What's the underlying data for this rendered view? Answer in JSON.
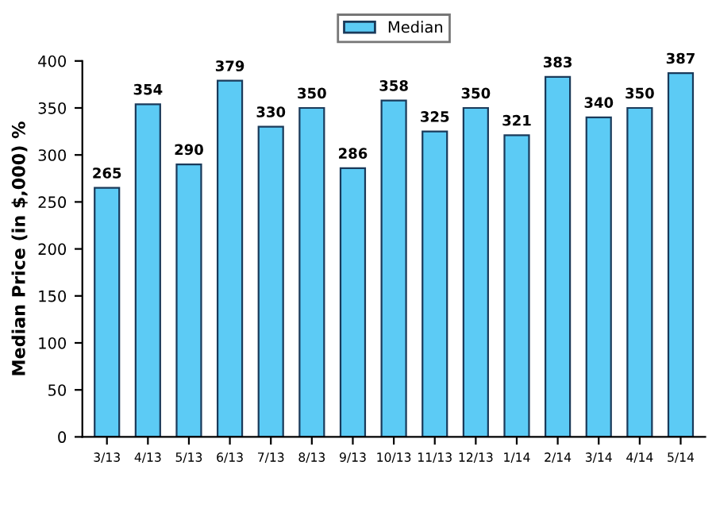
{
  "chart_data": {
    "type": "bar",
    "ylabel": "Median Price (in $,000) %",
    "categories": [
      "3/13",
      "4/13",
      "5/13",
      "6/13",
      "7/13",
      "8/13",
      "9/13",
      "10/13",
      "11/13",
      "12/13",
      "1/14",
      "2/14",
      "3/14",
      "4/14",
      "5/14"
    ],
    "series": [
      {
        "name": "Median",
        "color": "#5ccbf5",
        "values": [
          265,
          354,
          290,
          379,
          330,
          350,
          286,
          358,
          325,
          350,
          321,
          383,
          340,
          350,
          387
        ]
      }
    ],
    "ylim": [
      0,
      400
    ],
    "yticks": [
      0,
      50,
      100,
      150,
      200,
      250,
      300,
      350,
      400
    ],
    "data_labels": true,
    "legend": "top",
    "grid": false
  }
}
